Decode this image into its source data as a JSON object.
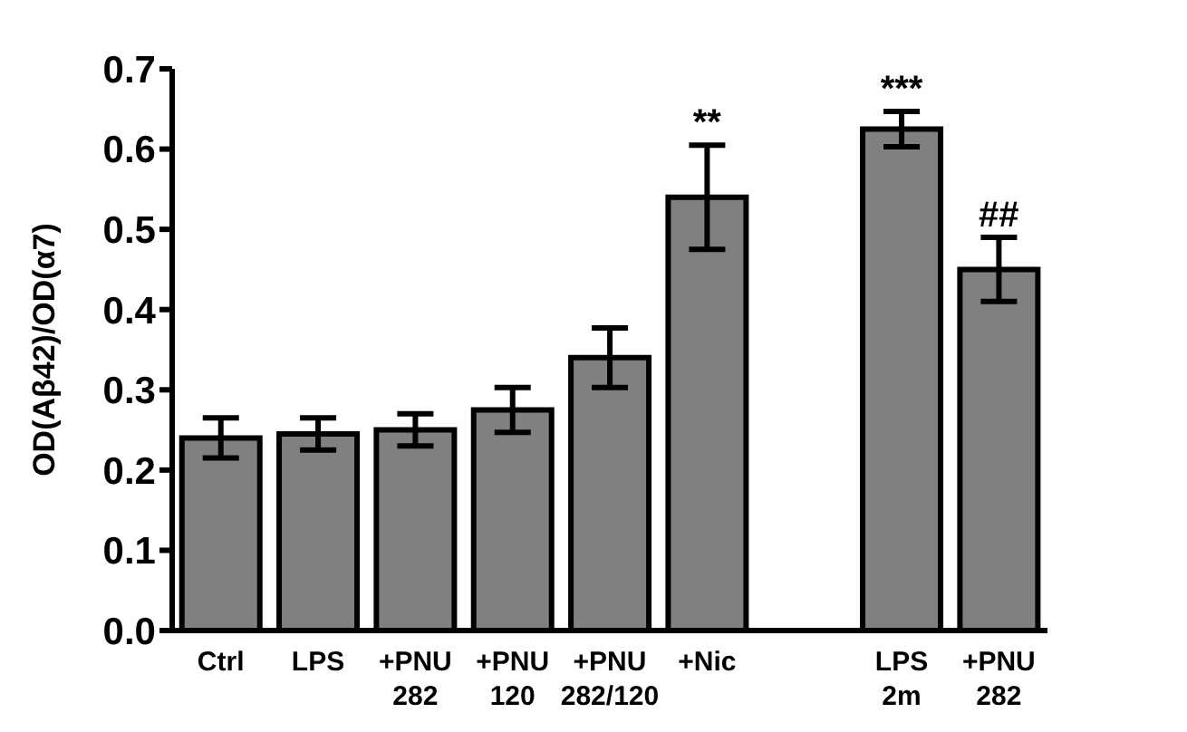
{
  "chart_data": {
    "type": "bar",
    "ylabel": "OD(Aβ42)/OD(α7)",
    "categories": [
      "Ctrl",
      "LPS",
      "+PNU\n282",
      "+PNU\n120",
      "+PNU\n282/120",
      "+Nic",
      null,
      "LPS\n2m",
      "+PNU\n282"
    ],
    "values": [
      0.24,
      0.245,
      0.25,
      0.275,
      0.34,
      0.54,
      null,
      0.625,
      0.45
    ],
    "errors": [
      0.025,
      0.02,
      0.02,
      0.028,
      0.037,
      0.065,
      null,
      0.022,
      0.04
    ],
    "color": "#808080",
    "ylim": [
      0,
      0.7
    ],
    "yticks": [
      {
        "value": 0,
        "label": "0.0"
      },
      0.1,
      0.2,
      0.3,
      0.4,
      0.5,
      0.6,
      0.7
    ],
    "annotations": [
      {
        "text": "**",
        "x": "+Nic",
        "y": 0.605
      },
      {
        "text": "***",
        "x": "LPS\n2m",
        "y": 0.647
      },
      "##"
    ],
    "grid": false,
    "legend": false
  }
}
